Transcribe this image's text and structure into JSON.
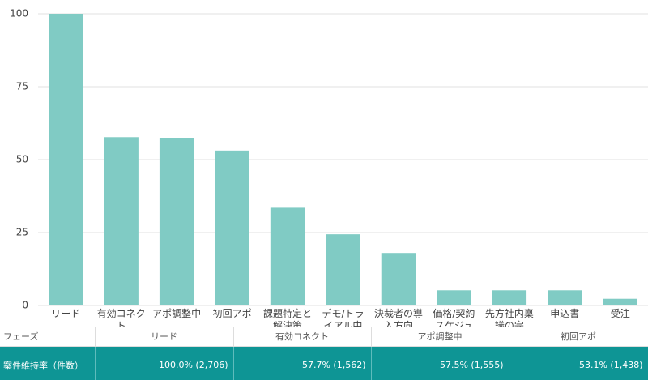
{
  "chart_data": {
    "type": "bar",
    "categories": [
      "リード",
      "有効コネクト",
      "アポ調整中",
      "初回アポ",
      "課題特定と解決策",
      "デモ/トライアル中",
      "決裁者の導入方向",
      "価格/契約スケジュ",
      "先方社内稟議の完",
      "申込書",
      "受注"
    ],
    "values": [
      100,
      57.7,
      57.5,
      53.1,
      33.5,
      24.4,
      18,
      5.2,
      5.2,
      5.2,
      2.3
    ],
    "color": "#80cbc4",
    "ylim": [
      0,
      100
    ],
    "yticks": [
      0,
      25,
      50,
      75,
      100
    ],
    "grid": true
  },
  "table": {
    "header": [
      "フェーズ",
      "リード",
      "有効コネクト",
      "アポ調整中",
      "初回アポ"
    ],
    "rows": [
      [
        "案件維持率（件数）",
        "100.0% (2,706)",
        "57.7% (1,562)",
        "57.5% (1,555)",
        "53.1% (1,438)"
      ]
    ]
  }
}
